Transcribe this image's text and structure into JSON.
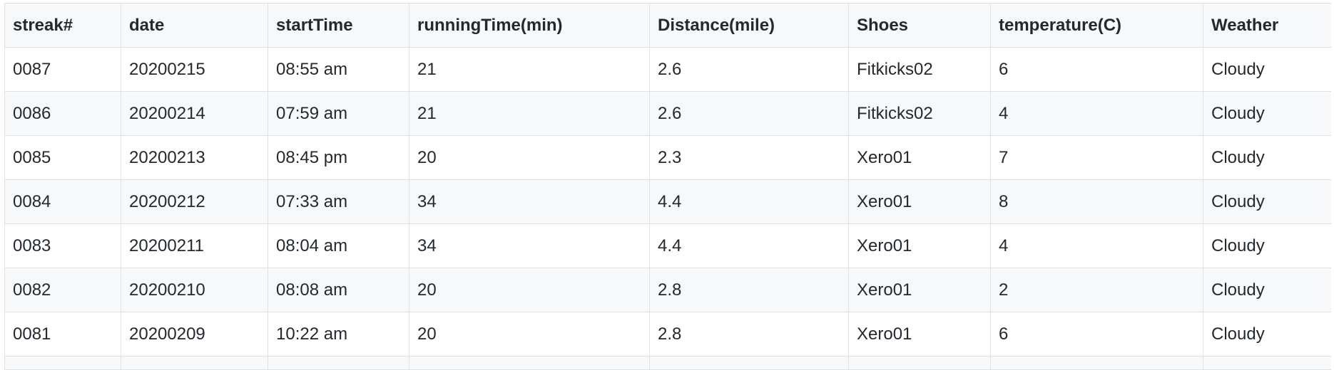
{
  "table": {
    "columns": [
      "streak#",
      "date",
      "startTime",
      "runningTime(min)",
      "Distance(mile)",
      "Shoes",
      "temperature(C)",
      "Weather"
    ],
    "rows": [
      [
        "0087",
        "20200215",
        "08:55 am",
        "21",
        "2.6",
        "Fitkicks02",
        "6",
        "Cloudy"
      ],
      [
        "0086",
        "20200214",
        "07:59 am",
        "21",
        "2.6",
        "Fitkicks02",
        "4",
        "Cloudy"
      ],
      [
        "0085",
        "20200213",
        "08:45 pm",
        "20",
        "2.3",
        "Xero01",
        "7",
        "Cloudy"
      ],
      [
        "0084",
        "20200212",
        "07:33 am",
        "34",
        "4.4",
        "Xero01",
        "8",
        "Cloudy"
      ],
      [
        "0083",
        "20200211",
        "08:04 am",
        "34",
        "4.4",
        "Xero01",
        "4",
        "Cloudy"
      ],
      [
        "0082",
        "20200210",
        "08:08 am",
        "20",
        "2.8",
        "Xero01",
        "2",
        "Cloudy"
      ],
      [
        "0081",
        "20200209",
        "10:22 am",
        "20",
        "2.8",
        "Xero01",
        "6",
        "Cloudy"
      ]
    ]
  }
}
